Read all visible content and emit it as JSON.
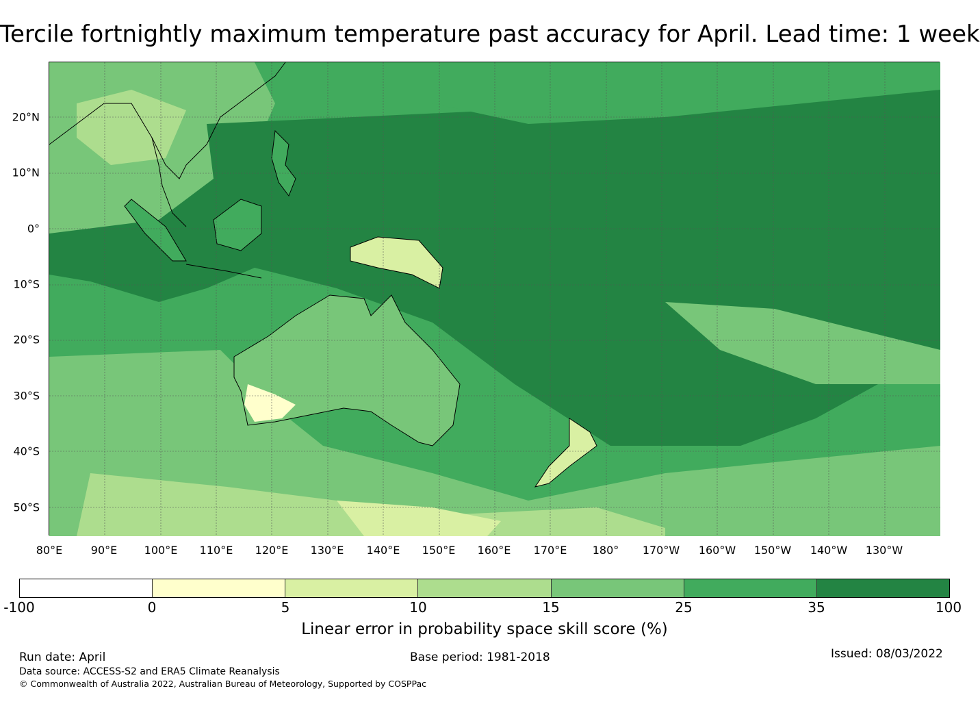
{
  "title": "Tercile fortnightly maximum temperature past accuracy for April. Lead time: 1 week",
  "map": {
    "lat_labels": [
      "20°N",
      "10°N",
      "0°",
      "10°S",
      "20°S",
      "30°S",
      "40°S",
      "50°S"
    ],
    "lon_labels": [
      "80°E",
      "90°E",
      "100°E",
      "110°E",
      "120°E",
      "130°E",
      "140°E",
      "150°E",
      "160°E",
      "170°E",
      "180°",
      "170°W",
      "160°W",
      "150°W",
      "140°W",
      "130°W"
    ],
    "colors": {
      "c0": "#ffffff",
      "c1": "#ffffcc",
      "c2": "#d9f0a3",
      "c3": "#addd8e",
      "c4": "#78c679",
      "c5": "#41ab5d",
      "c6": "#238443"
    }
  },
  "colorbar": {
    "tick_labels": [
      "-100",
      "0",
      "5",
      "10",
      "15",
      "25",
      "35",
      "100"
    ],
    "label": "Linear error in probability space skill score (%)"
  },
  "footer": {
    "run_date": "Run date: April",
    "base_period": "Base period: 1981-2018",
    "issued": "Issued: 08/03/2022",
    "data_source": "Data source: ACCESS-S2 and ERA5 Climate Reanalysis",
    "copyright": "© Commonwealth of Australia 2022, Australian Bureau of Meteorology, Supported by COSPPac"
  }
}
